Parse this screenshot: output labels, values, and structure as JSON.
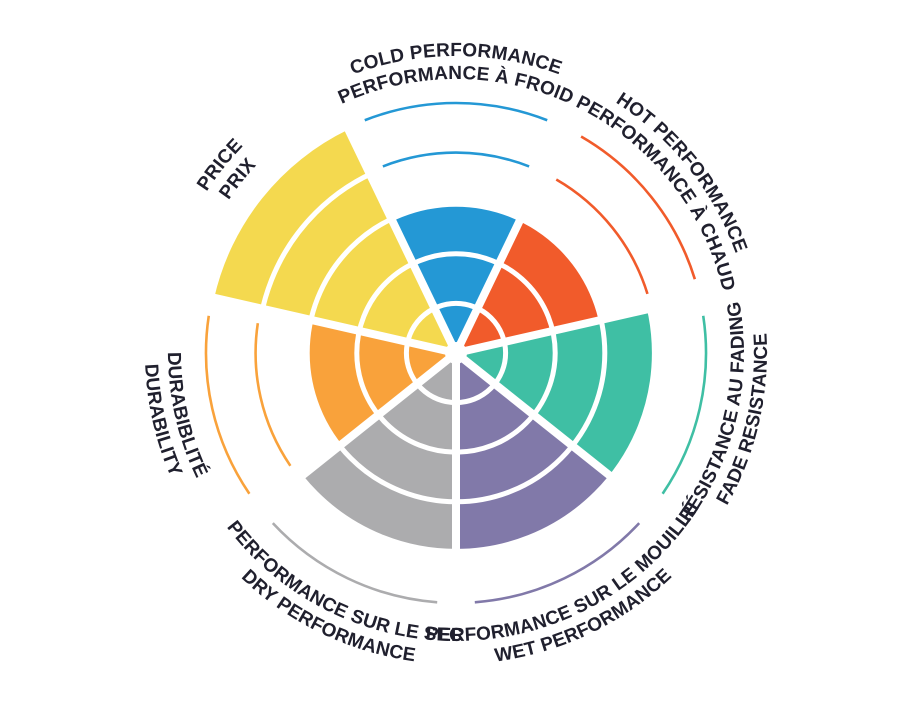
{
  "page": {
    "background": "#ffffff",
    "description": "Tire performance rating wheel, 7 sectors, bilingual EN/FR curved labels"
  },
  "chart_data": {
    "type": "bar",
    "subtype": "polar-wheel: 7 equal pie sectors, each filled radially to its value on a 0-5 ring scale; unfilled ring levels shown as thin colored outline arcs",
    "title": "",
    "legend_position": "none",
    "grid": "concentric white ring gaps at each of 5 levels",
    "scale": {
      "min": 0,
      "max": 5,
      "rings": 5
    },
    "label_text_color": "#20202E",
    "gap_color": "#FFFFFF",
    "categories": [
      {
        "id": "cold-performance",
        "line1": "COLD PERFORMANCE",
        "line2": "PERFORMANCE À FROID",
        "value": 3,
        "color": "#2498D5"
      },
      {
        "id": "hot-performance",
        "line1": "HOT PERFORMANCE",
        "line2": "PERFORMANCE À CHAUD",
        "value": 3,
        "color": "#F15B2B"
      },
      {
        "id": "fade-resistance",
        "line1": "RÉSISTANCE AU FADING",
        "line2": "FADE RESISTANCE",
        "value": 4,
        "color": "#3FBFA4"
      },
      {
        "id": "wet-performance",
        "line1": "PERFORMANCE SUR LE MOUILLÉ",
        "line2": "WET PERFORMANCE",
        "value": 4,
        "color": "#8179A9"
      },
      {
        "id": "dry-performance",
        "line1": "PERFORMANCE SUR LE SEC",
        "line2": "DRY PERFORMANCE",
        "value": 4,
        "color": "#ACACAE"
      },
      {
        "id": "durability",
        "line1": "DURABIBLITÉ",
        "line2": "DURABILITY",
        "value": 3,
        "color": "#F9A23B"
      },
      {
        "id": "price",
        "line1": "PRICE",
        "line2": "PRIX",
        "value": 5,
        "color": "#F4D94F"
      }
    ]
  }
}
